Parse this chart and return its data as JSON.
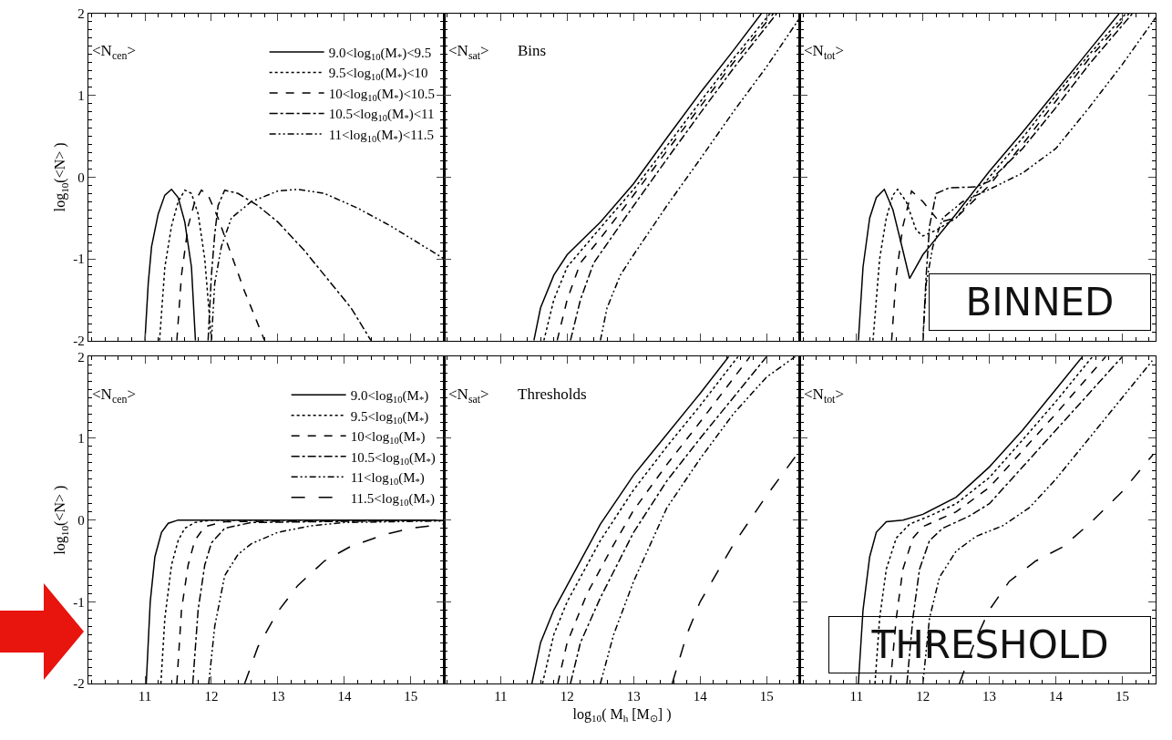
{
  "chart_data": [
    {
      "type": "line",
      "annotations": [
        "<N$_{cen}$>"
      ],
      "ylabel": "log$_{10}$(<N> )",
      "xlim": [
        10.15,
        15.5
      ],
      "ylim": [
        -2,
        2
      ],
      "xticks": [
        11,
        12,
        13,
        14,
        15
      ],
      "yticks": [
        -2,
        -1,
        0,
        1,
        2
      ],
      "tick_labels": "y",
      "legend": "top right",
      "series": [
        {
          "name": "9.0<log$_{10}$(M$_{*}$)<9.5",
          "color": "#000000",
          "line_style": "solid",
          "x": [
            11.0,
            11.05,
            11.1,
            11.2,
            11.3,
            11.4,
            11.5,
            11.6,
            11.7,
            11.76
          ],
          "values": [
            -2,
            -1.3,
            -0.85,
            -0.45,
            -0.22,
            -0.15,
            -0.25,
            -0.55,
            -1.1,
            -2
          ]
        },
        {
          "name": "9.5<log$_{10}$(M$_{*}$)<10",
          "color": "#000000",
          "line_style": "dotted",
          "x": [
            11.22,
            11.3,
            11.4,
            11.5,
            11.6,
            11.7,
            11.8,
            11.9,
            12.0
          ],
          "values": [
            -2,
            -1.1,
            -0.6,
            -0.3,
            -0.16,
            -0.2,
            -0.45,
            -1.0,
            -2
          ]
        },
        {
          "name": "10<log$_{10}$(M$_{*}$)<10.5",
          "color": "#000000",
          "line_style": "dashed",
          "x": [
            11.48,
            11.55,
            11.65,
            11.75,
            11.85,
            11.95,
            12.1,
            12.3,
            12.5,
            12.8
          ],
          "values": [
            -2,
            -1.2,
            -0.6,
            -0.3,
            -0.16,
            -0.22,
            -0.5,
            -0.95,
            -1.4,
            -2
          ]
        },
        {
          "name": "10.5<log$_{10}$(M$_{*}$)<11",
          "color": "#000000",
          "line_style": "dashdot",
          "x": [
            11.95,
            12.0,
            12.05,
            12.1,
            12.2,
            12.4,
            12.7,
            13.0,
            13.4,
            13.8,
            14.1,
            14.4
          ],
          "values": [
            -2,
            -1.2,
            -0.7,
            -0.35,
            -0.16,
            -0.2,
            -0.35,
            -0.55,
            -0.9,
            -1.3,
            -1.6,
            -2
          ]
        },
        {
          "name": "11<log$_{10}$(M$_{*}$)<11.5",
          "color": "#000000",
          "line_style": "dashdotdot",
          "x": [
            12.0,
            12.05,
            12.15,
            12.3,
            12.6,
            13.0,
            13.3,
            13.7,
            14.2,
            14.7,
            15.2,
            15.5
          ],
          "values": [
            -2,
            -1.3,
            -0.85,
            -0.5,
            -0.3,
            -0.17,
            -0.15,
            -0.2,
            -0.38,
            -0.6,
            -0.85,
            -1.0
          ]
        }
      ]
    },
    {
      "type": "line",
      "annotations": [
        "<N$_{sat}$>",
        "Bins"
      ],
      "xlim": [
        10.15,
        15.5
      ],
      "ylim": [
        -2,
        2
      ],
      "xticks": [
        11,
        12,
        13,
        14,
        15
      ],
      "yticks": [
        -2,
        -1,
        0,
        1,
        2
      ],
      "tick_labels": false,
      "series": [
        {
          "color": "#000000",
          "line_style": "solid",
          "x": [
            11.5,
            11.6,
            11.8,
            12.0,
            12.5,
            13.0,
            13.5,
            14.0,
            14.5,
            14.92
          ],
          "values": [
            -2,
            -1.6,
            -1.2,
            -0.95,
            -0.55,
            -0.08,
            0.48,
            1.03,
            1.55,
            2
          ]
        },
        {
          "color": "#000000",
          "line_style": "dotted",
          "x": [
            11.65,
            11.8,
            12.0,
            12.5,
            13.0,
            13.5,
            14.0,
            14.5,
            15.05
          ],
          "values": [
            -2,
            -1.5,
            -1.1,
            -0.62,
            -0.15,
            0.38,
            0.92,
            1.45,
            2
          ]
        },
        {
          "color": "#000000",
          "line_style": "dashed",
          "x": [
            11.85,
            12.0,
            12.2,
            12.5,
            13.0,
            13.5,
            14.0,
            14.5,
            15.1
          ],
          "values": [
            -2,
            -1.5,
            -1.05,
            -0.75,
            -0.22,
            0.32,
            0.86,
            1.4,
            2
          ]
        },
        {
          "color": "#000000",
          "line_style": "dashdot",
          "x": [
            12.05,
            12.2,
            12.4,
            12.7,
            13.0,
            13.5,
            14.0,
            14.5,
            15.15
          ],
          "values": [
            -2,
            -1.5,
            -1.05,
            -0.7,
            -0.35,
            0.22,
            0.78,
            1.33,
            2
          ]
        },
        {
          "color": "#000000",
          "line_style": "dashdotdot",
          "x": [
            12.5,
            12.6,
            12.8,
            13.0,
            13.5,
            14.0,
            14.5,
            15.0,
            15.5
          ],
          "values": [
            -2,
            -1.6,
            -1.2,
            -0.95,
            -0.35,
            0.22,
            0.8,
            1.35,
            1.95
          ]
        }
      ]
    },
    {
      "type": "line",
      "annotations": [
        "<N$_{tot}$>",
        "BINNED"
      ],
      "xlim": [
        10.15,
        15.5
      ],
      "ylim": [
        -2,
        2
      ],
      "xticks": [
        11,
        12,
        13,
        14,
        15
      ],
      "yticks": [
        -2,
        -1,
        0,
        1,
        2
      ],
      "tick_labels": false,
      "series": [
        {
          "color": "#000000",
          "line_style": "solid",
          "x": [
            11.03,
            11.1,
            11.2,
            11.3,
            11.42,
            11.55,
            11.7,
            11.8,
            12.0,
            12.5,
            13.0,
            13.5,
            14.0,
            14.5,
            14.95
          ],
          "values": [
            -2,
            -1.1,
            -0.5,
            -0.25,
            -0.15,
            -0.4,
            -0.9,
            -1.24,
            -0.95,
            -0.45,
            0.07,
            0.55,
            1.05,
            1.55,
            2
          ]
        },
        {
          "color": "#000000",
          "line_style": "dotted",
          "x": [
            11.25,
            11.35,
            11.45,
            11.55,
            11.62,
            11.75,
            11.9,
            12.0,
            12.2,
            12.5,
            13.0,
            13.5,
            14.0,
            14.5,
            15.05
          ],
          "values": [
            -2,
            -1.0,
            -0.5,
            -0.22,
            -0.15,
            -0.3,
            -0.65,
            -0.72,
            -0.65,
            -0.5,
            0.0,
            0.48,
            1.0,
            1.5,
            2
          ]
        },
        {
          "color": "#000000",
          "line_style": "dashed",
          "x": [
            11.53,
            11.6,
            11.7,
            11.83,
            12.0,
            12.25,
            12.5,
            13.0,
            13.5,
            14.0,
            14.5,
            15.1
          ],
          "values": [
            -2,
            -1.2,
            -0.6,
            -0.17,
            -0.3,
            -0.55,
            -0.5,
            -0.1,
            0.4,
            0.93,
            1.45,
            2
          ]
        },
        {
          "color": "#000000",
          "line_style": "dashdot",
          "x": [
            12.0,
            12.05,
            12.1,
            12.2,
            12.4,
            12.8,
            13.0,
            13.5,
            14.0,
            14.5,
            15.15
          ],
          "values": [
            -2,
            -1.2,
            -0.6,
            -0.2,
            -0.13,
            -0.12,
            -0.05,
            0.35,
            0.85,
            1.38,
            2
          ]
        },
        {
          "color": "#000000",
          "line_style": "dashdotdot",
          "x": [
            12.0,
            12.05,
            12.15,
            12.3,
            12.6,
            13.0,
            13.5,
            14.0,
            14.5,
            15.0,
            15.5
          ],
          "values": [
            -2,
            -1.3,
            -0.85,
            -0.5,
            -0.3,
            -0.15,
            0.05,
            0.35,
            0.85,
            1.38,
            1.95
          ]
        }
      ]
    },
    {
      "type": "line",
      "annotations": [
        "<N$_{cen}$>"
      ],
      "ylabel": "log$_{10}$(<N> )",
      "xlim": [
        10.15,
        15.5
      ],
      "ylim": [
        -2,
        2
      ],
      "xticks": [
        11,
        12,
        13,
        14,
        15
      ],
      "yticks": [
        -2,
        -1,
        0,
        1,
        2
      ],
      "legend": "top right",
      "series": [
        {
          "name": "9.0<log$_{10}$(M$_{*}$)",
          "color": "#000000",
          "line_style": "solid",
          "x": [
            11.02,
            11.08,
            11.15,
            11.25,
            11.35,
            11.5,
            15.5
          ],
          "values": [
            -2,
            -1.0,
            -0.45,
            -0.15,
            -0.04,
            0,
            0
          ]
        },
        {
          "name": "9.5<log$_{10}$(M$_{*}$)",
          "color": "#000000",
          "line_style": "dotted",
          "x": [
            11.24,
            11.3,
            11.4,
            11.5,
            11.6,
            11.75,
            12.0,
            15.5
          ],
          "values": [
            -2,
            -1.2,
            -0.55,
            -0.25,
            -0.1,
            -0.03,
            0,
            0
          ]
        },
        {
          "name": "10<log$_{10}$(M$_{*}$)",
          "color": "#000000",
          "line_style": "dashed",
          "x": [
            11.48,
            11.55,
            11.65,
            11.75,
            11.9,
            12.2,
            15.5
          ],
          "values": [
            -2,
            -1.1,
            -0.55,
            -0.25,
            -0.08,
            -0.02,
            0
          ]
        },
        {
          "name": "10.5<log$_{10}$(M$_{*}$)",
          "color": "#000000",
          "line_style": "dashdot",
          "x": [
            11.72,
            11.8,
            11.9,
            12.0,
            12.2,
            12.6,
            15.5
          ],
          "values": [
            -2,
            -1.1,
            -0.55,
            -0.28,
            -0.1,
            -0.03,
            0
          ]
        },
        {
          "name": "11<log$_{10}$(M$_{*}$)",
          "color": "#000000",
          "line_style": "dashdotdot",
          "x": [
            11.96,
            12.05,
            12.2,
            12.4,
            12.6,
            13.0,
            13.5,
            14.0,
            15.5
          ],
          "values": [
            -2,
            -1.3,
            -0.68,
            -0.42,
            -0.29,
            -0.15,
            -0.07,
            -0.03,
            -0.01
          ]
        },
        {
          "name": "11.5<log$_{10}$(M$_{*}$)",
          "color": "#000000",
          "line_style": "longdash",
          "x": [
            12.5,
            12.7,
            13.0,
            13.3,
            13.7,
            14.1,
            14.6,
            15.0,
            15.5
          ],
          "values": [
            -2,
            -1.55,
            -1.12,
            -0.8,
            -0.5,
            -0.32,
            -0.18,
            -0.1,
            -0.05
          ]
        }
      ]
    },
    {
      "type": "line",
      "annotations": [
        "<N$_{sat}$>",
        "Thresholds"
      ],
      "xlabel": "log$_{10}$( M$_{h}$ [M$_{⊙}$] )",
      "xlim": [
        10.15,
        15.5
      ],
      "ylim": [
        -2,
        2
      ],
      "xticks": [
        11,
        12,
        13,
        14,
        15
      ],
      "yticks": [
        -2,
        -1,
        0,
        1,
        2
      ],
      "tick_labels": "x",
      "series": [
        {
          "color": "#000000",
          "line_style": "solid",
          "x": [
            11.47,
            11.6,
            11.8,
            12.0,
            12.5,
            13.0,
            13.5,
            14.0,
            14.43
          ],
          "values": [
            -2,
            -1.5,
            -1.1,
            -0.8,
            -0.05,
            0.55,
            1.05,
            1.55,
            2
          ]
        },
        {
          "color": "#000000",
          "line_style": "dotted",
          "x": [
            11.63,
            11.8,
            12.0,
            12.5,
            13.0,
            13.5,
            14.0,
            14.57
          ],
          "values": [
            -2,
            -1.4,
            -1.0,
            -0.25,
            0.37,
            0.9,
            1.4,
            2
          ]
        },
        {
          "color": "#000000",
          "line_style": "dashed",
          "x": [
            11.86,
            12.0,
            12.3,
            12.7,
            13.0,
            13.5,
            14.0,
            14.75
          ],
          "values": [
            -2,
            -1.5,
            -0.9,
            -0.3,
            0.12,
            0.68,
            1.2,
            2
          ]
        },
        {
          "color": "#000000",
          "line_style": "dashdot",
          "x": [
            12.05,
            12.2,
            12.5,
            13.0,
            13.5,
            14.0,
            14.5,
            15.0
          ],
          "values": [
            -2,
            -1.5,
            -0.95,
            -0.15,
            0.48,
            1.0,
            1.5,
            2
          ]
        },
        {
          "color": "#000000",
          "line_style": "dashdotdot",
          "x": [
            12.5,
            12.7,
            13.0,
            13.5,
            14.0,
            14.5,
            15.0,
            15.43
          ],
          "values": [
            -2,
            -1.4,
            -0.75,
            0.15,
            0.75,
            1.3,
            1.75,
            2
          ]
        },
        {
          "color": "#000000",
          "line_style": "longdash",
          "x": [
            13.58,
            13.8,
            14.0,
            14.5,
            15.0,
            15.5
          ],
          "values": [
            -2,
            -1.4,
            -1.0,
            -0.3,
            0.3,
            0.85
          ]
        }
      ]
    },
    {
      "type": "line",
      "annotations": [
        "<N$_{tot}$>",
        "THRESHOLD"
      ],
      "xlim": [
        10.15,
        15.5
      ],
      "ylim": [
        -2,
        2
      ],
      "xticks": [
        11,
        12,
        13,
        14,
        15
      ],
      "yticks": [
        -2,
        -1,
        0,
        1,
        2
      ],
      "tick_labels": "x",
      "series": [
        {
          "color": "#000000",
          "line_style": "solid",
          "x": [
            11.03,
            11.1,
            11.2,
            11.3,
            11.45,
            11.7,
            12.0,
            12.5,
            13.0,
            13.5,
            14.0,
            14.4
          ],
          "values": [
            -2,
            -1.1,
            -0.45,
            -0.15,
            -0.02,
            0.0,
            0.07,
            0.28,
            0.65,
            1.1,
            1.6,
            2
          ]
        },
        {
          "color": "#000000",
          "line_style": "dotted",
          "x": [
            11.28,
            11.35,
            11.45,
            11.6,
            11.8,
            12.1,
            12.5,
            13.0,
            13.5,
            14.0,
            14.55
          ],
          "values": [
            -2,
            -1.2,
            -0.6,
            -0.22,
            -0.05,
            0.05,
            0.2,
            0.52,
            0.98,
            1.45,
            2
          ]
        },
        {
          "color": "#000000",
          "line_style": "dashed",
          "x": [
            11.51,
            11.6,
            11.7,
            11.85,
            12.0,
            12.5,
            13.0,
            13.5,
            14.0,
            14.75
          ],
          "values": [
            -2,
            -1.2,
            -0.6,
            -0.22,
            -0.08,
            0.1,
            0.4,
            0.85,
            1.3,
            2
          ]
        },
        {
          "color": "#000000",
          "line_style": "dashdot",
          "x": [
            11.76,
            11.85,
            11.95,
            12.1,
            12.3,
            12.7,
            13.0,
            13.5,
            14.0,
            14.5,
            15.0
          ],
          "values": [
            -2,
            -1.2,
            -0.6,
            -0.25,
            -0.1,
            0.05,
            0.2,
            0.65,
            1.1,
            1.55,
            2
          ]
        },
        {
          "color": "#000000",
          "line_style": "dashdotdot",
          "x": [
            12.0,
            12.1,
            12.25,
            12.5,
            12.8,
            13.2,
            13.6,
            14.0,
            14.5,
            15.0,
            15.45
          ],
          "values": [
            -2,
            -1.2,
            -0.7,
            -0.38,
            -0.2,
            -0.07,
            0.15,
            0.5,
            1.0,
            1.5,
            1.95
          ]
        },
        {
          "color": "#000000",
          "line_style": "longdash",
          "x": [
            12.55,
            12.8,
            13.0,
            13.3,
            13.7,
            14.1,
            14.5,
            15.0,
            15.46
          ],
          "values": [
            -2,
            -1.45,
            -1.1,
            -0.75,
            -0.5,
            -0.33,
            -0.05,
            0.35,
            0.8
          ]
        }
      ]
    }
  ]
}
